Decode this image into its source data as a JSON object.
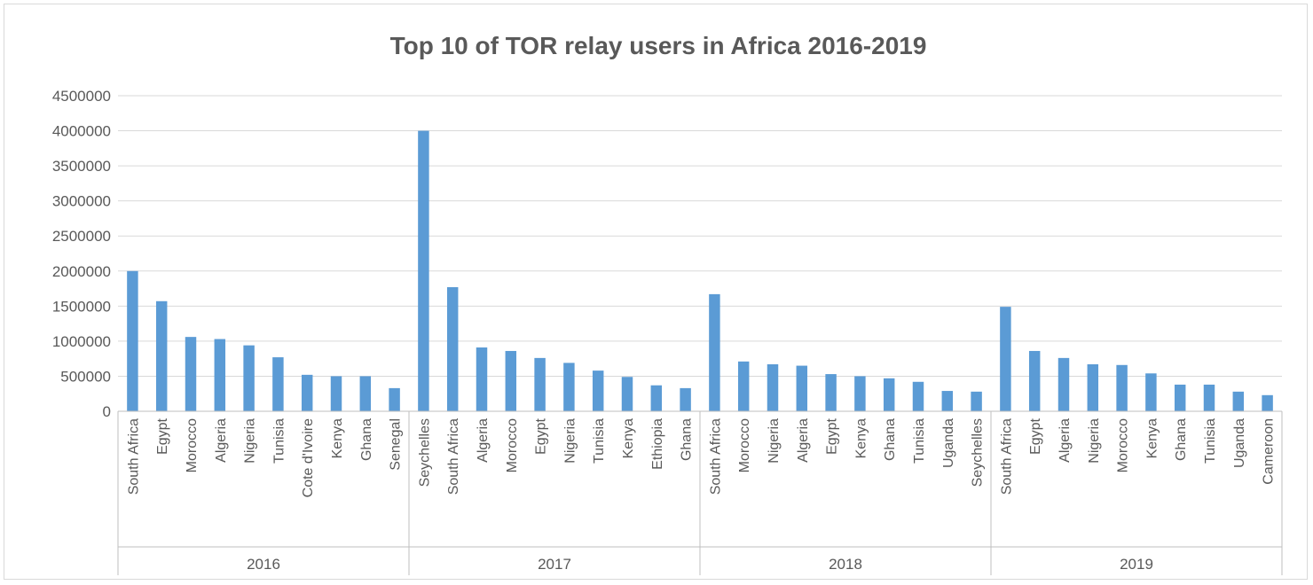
{
  "chart_data": {
    "type": "bar",
    "title": "Top 10 of TOR relay users in Africa 2016-2019",
    "xlabel": "",
    "ylabel": "",
    "ylim": [
      0,
      4500000
    ],
    "yticks": [
      0,
      500000,
      1000000,
      1500000,
      2000000,
      2500000,
      3000000,
      3500000,
      4000000,
      4500000
    ],
    "grid": true,
    "legend": "none",
    "bar_color": "#5b9bd5",
    "groups": [
      {
        "label": "2016",
        "categories": [
          "South Africa",
          "Egypt",
          "Morocco",
          "Algeria",
          "Nigeria",
          "Tunisia",
          "Cote d'Ivoire",
          "Kenya",
          "Ghana",
          "Senegal"
        ],
        "values": [
          2000000,
          1570000,
          1060000,
          1030000,
          940000,
          770000,
          520000,
          500000,
          500000,
          330000
        ]
      },
      {
        "label": "2017",
        "categories": [
          "Seychelles",
          "South Africa",
          "Algeria",
          "Morocco",
          "Egypt",
          "Nigeria",
          "Tunisia",
          "Kenya",
          "Ethiopia",
          "Ghana"
        ],
        "values": [
          4000000,
          1770000,
          910000,
          860000,
          760000,
          690000,
          580000,
          490000,
          370000,
          330000
        ]
      },
      {
        "label": "2018",
        "categories": [
          "South Africa",
          "Morocco",
          "Nigeria",
          "Algeria",
          "Egypt",
          "Kenya",
          "Ghana",
          "Tunisia",
          "Uganda",
          "Seychelles"
        ],
        "values": [
          1670000,
          710000,
          670000,
          650000,
          530000,
          500000,
          470000,
          420000,
          290000,
          280000
        ]
      },
      {
        "label": "2019",
        "categories": [
          "South Africa",
          "Egypt",
          "Algeria",
          "Nigeria",
          "Morocco",
          "Kenya",
          "Ghana",
          "Tunisia",
          "Uganda",
          "Cameroon"
        ],
        "values": [
          1490000,
          860000,
          760000,
          670000,
          660000,
          540000,
          380000,
          380000,
          280000,
          230000
        ]
      }
    ]
  }
}
